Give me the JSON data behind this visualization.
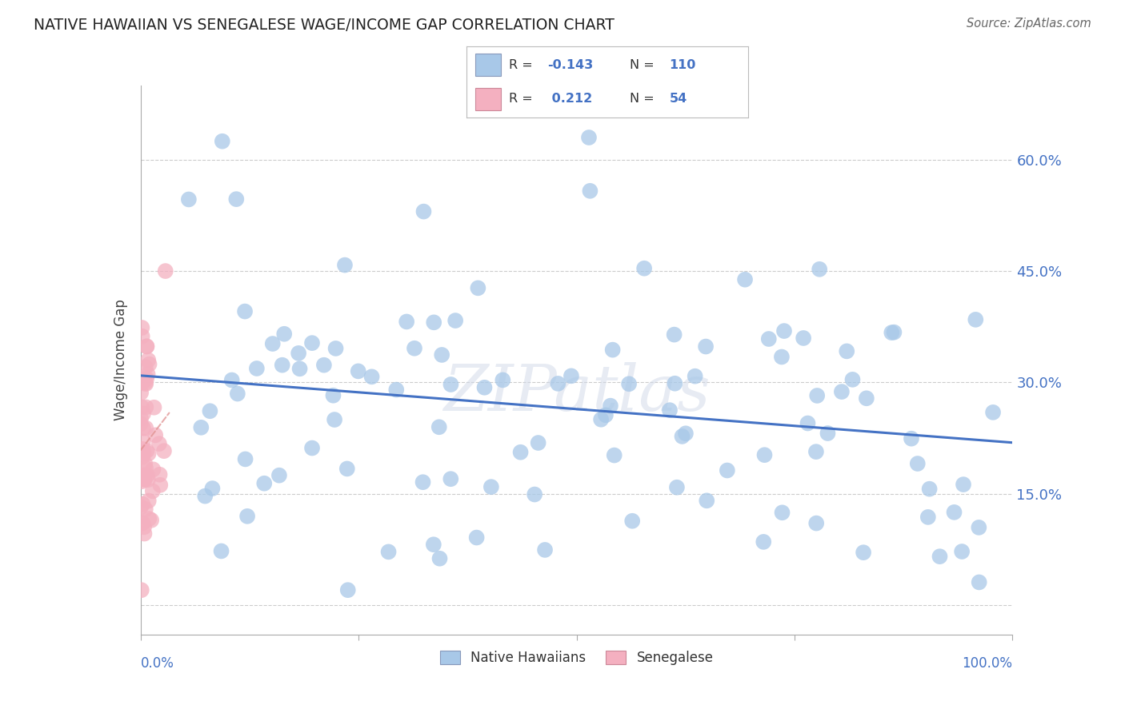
{
  "title": "NATIVE HAWAIIAN VS SENEGALESE WAGE/INCOME GAP CORRELATION CHART",
  "source": "Source: ZipAtlas.com",
  "ylabel": "Wage/Income Gap",
  "y_ticks": [
    0.0,
    0.15,
    0.3,
    0.45,
    0.6
  ],
  "y_tick_labels": [
    "",
    "15.0%",
    "30.0%",
    "45.0%",
    "60.0%"
  ],
  "x_range": [
    0.0,
    1.0
  ],
  "y_range": [
    -0.04,
    0.7
  ],
  "R_blue": -0.143,
  "N_blue": 110,
  "R_pink": 0.212,
  "N_pink": 54,
  "legend_label_blue": "Native Hawaiians",
  "legend_label_pink": "Senegalese",
  "watermark": "ZIPatlas",
  "blue_color": "#a8c8e8",
  "pink_color": "#f4b0c0",
  "line_blue": "#4472c4",
  "line_pink_color": "#e09090",
  "text_blue": "#4472c4",
  "grid_color": "#cccccc",
  "grid_style": "--"
}
